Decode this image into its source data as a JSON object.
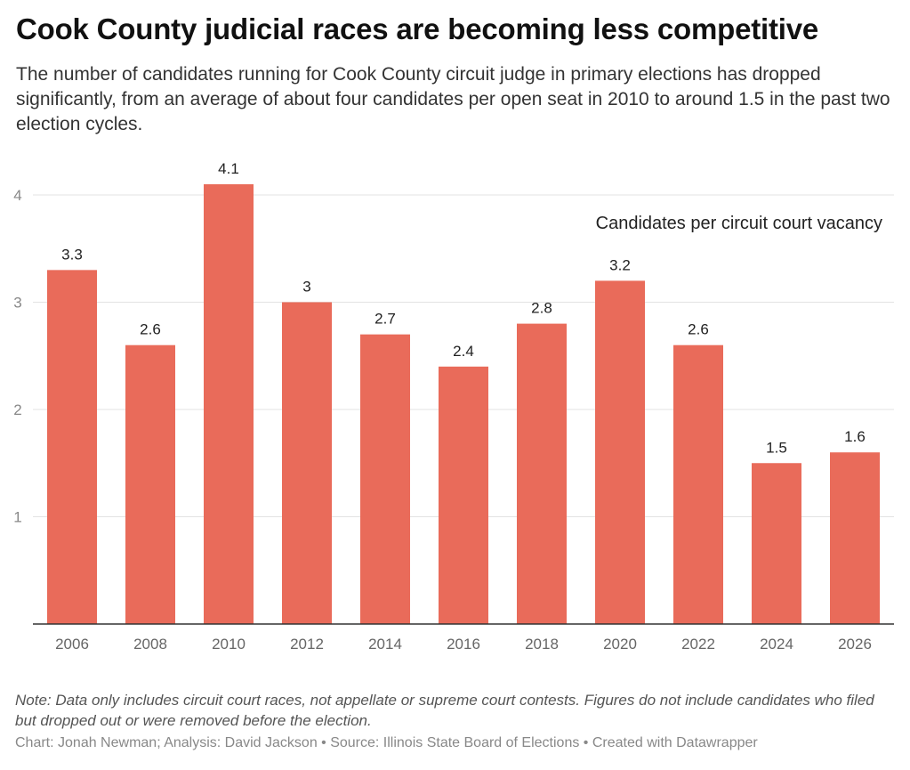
{
  "title": "Cook County judicial races are becoming less competitive",
  "subtitle": "The number of candidates running for Cook County circuit judge in primary elections has dropped significantly, from an average of about four candidates per open seat in 2010 to around 1.5 in the past two election cycles.",
  "note": "Note: Data only includes circuit court races, not appellate or supreme court contests. Figures do not include candidates who filed but dropped out or were removed before the election.",
  "credit": "Chart: Jonah Newman; Analysis: David Jackson • Source: Illinois State Board of Elections • Created with Datawrapper",
  "chart_data": {
    "type": "bar",
    "categories": [
      "2006",
      "2008",
      "2010",
      "2012",
      "2014",
      "2016",
      "2018",
      "2020",
      "2022",
      "2024",
      "2026"
    ],
    "values": [
      3.3,
      2.6,
      4.1,
      3,
      2.7,
      2.4,
      2.8,
      3.2,
      2.6,
      1.5,
      1.6
    ],
    "annotation": "Candidates per circuit court vacancy",
    "yticks": [
      1,
      2,
      3,
      4
    ],
    "ylim": [
      0,
      4.1
    ],
    "grid": true,
    "bar_color": "#e96b5a"
  }
}
